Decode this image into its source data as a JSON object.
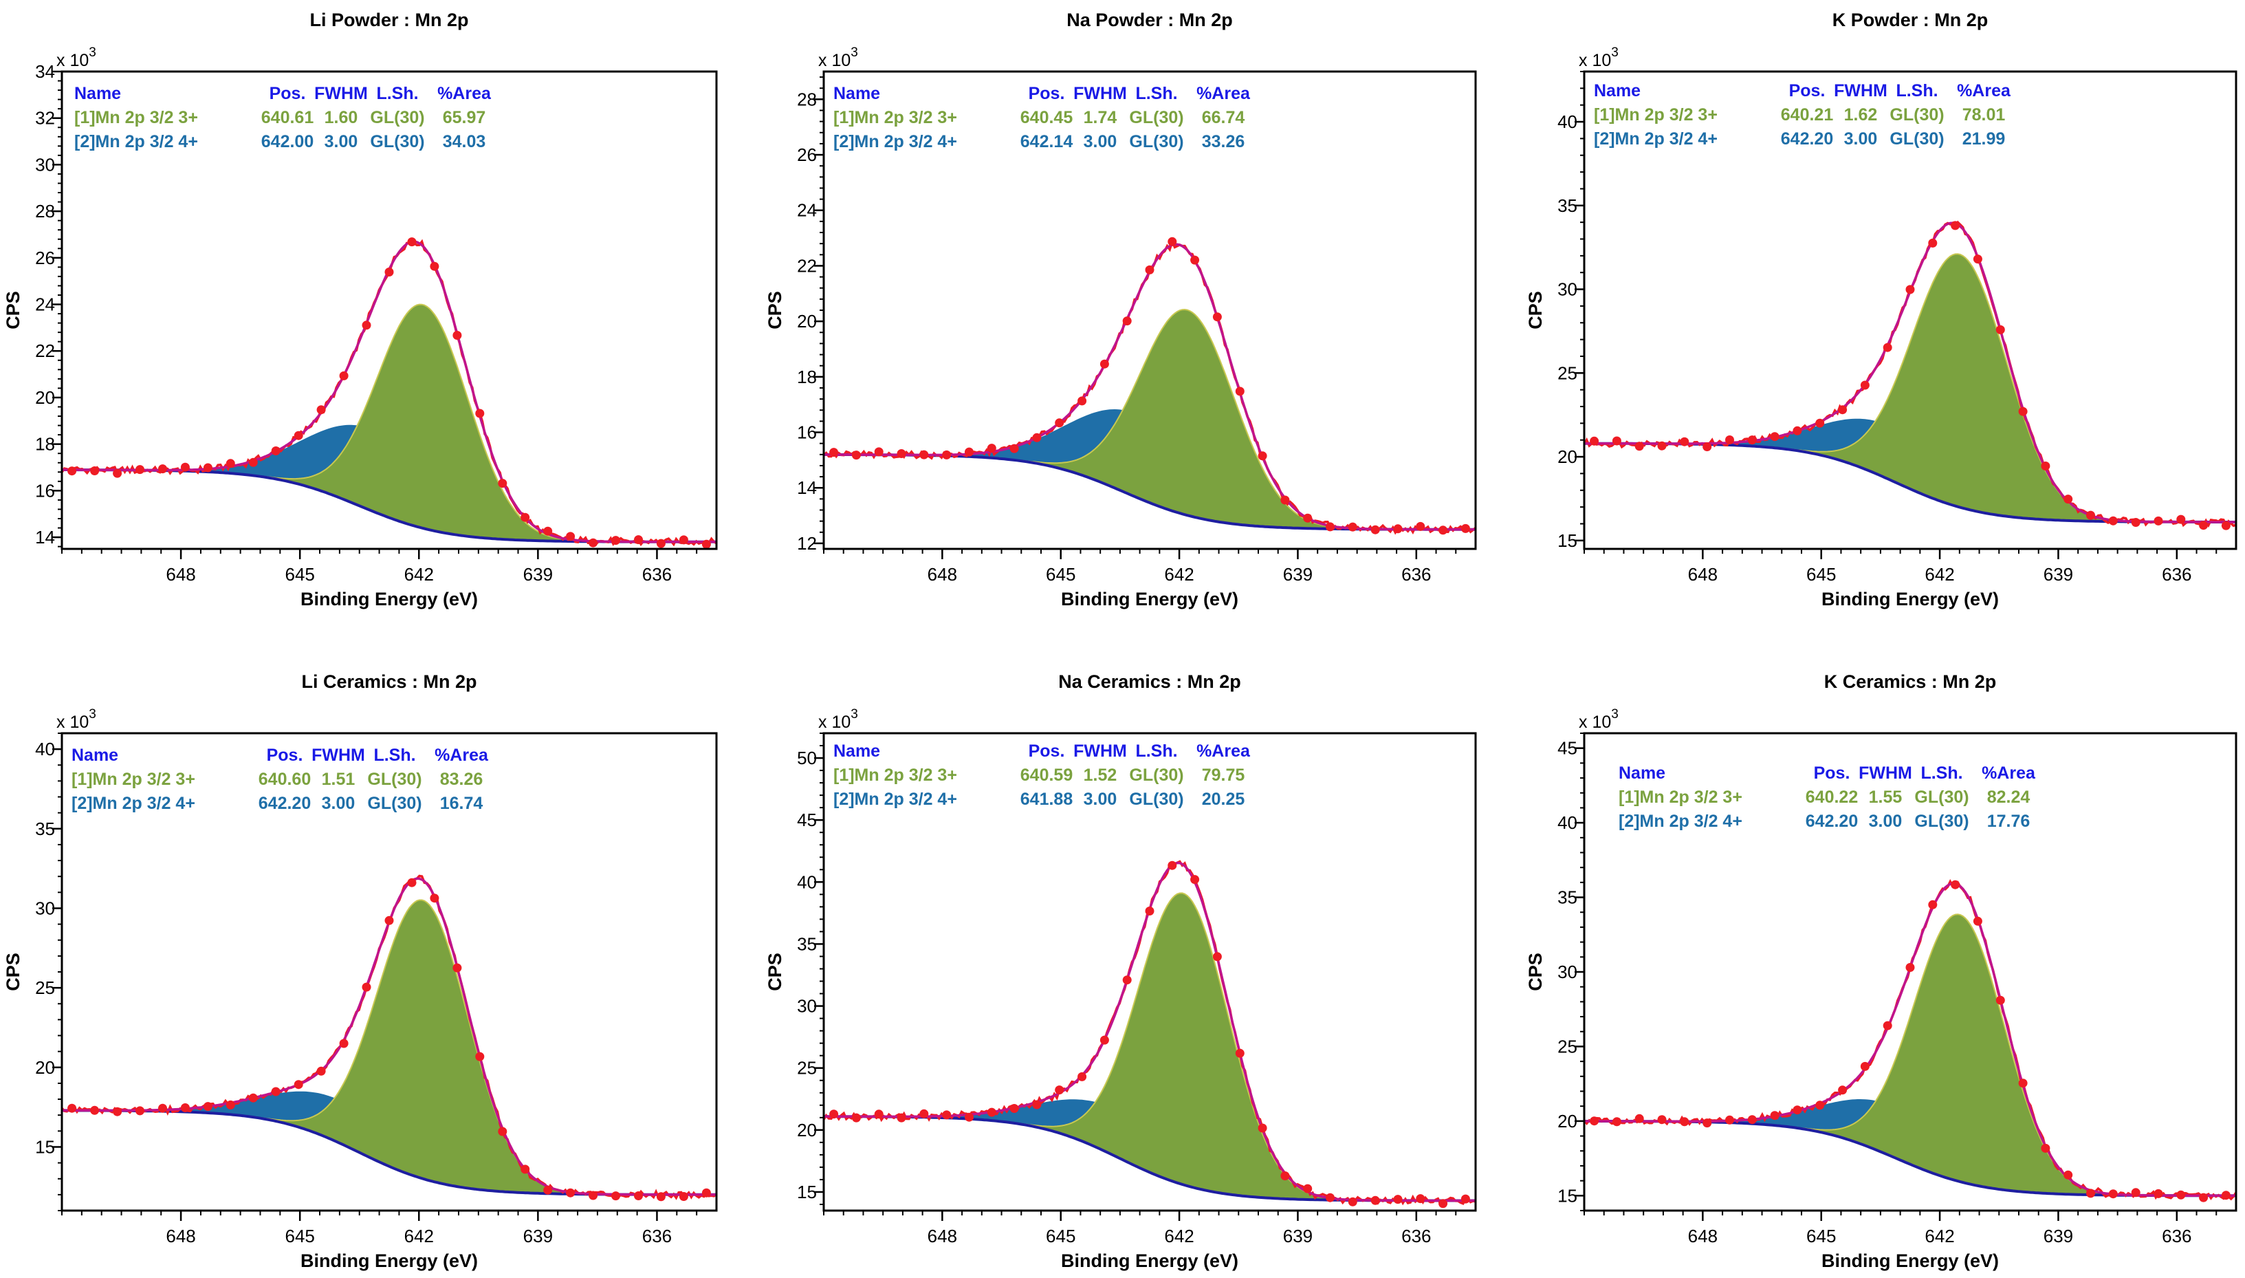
{
  "figure": {
    "xlabel": "Binding Energy (eV)",
    "ylabel": "CPS",
    "exp_prefix": "x 10",
    "exp_power": "3",
    "table_header": [
      "Name",
      "Pos.",
      "FWHM",
      "L.Sh.",
      "%Area"
    ]
  },
  "colors": {
    "mn3": "#7ba23f",
    "mn4": "#1f6fa8",
    "background": "#1e1ea0",
    "envelope": "#c0148c",
    "raw": "#ee1c24",
    "header": "#1a1ae6"
  },
  "chart_data": [
    {
      "type": "xps-fit",
      "title": "Li Powder : Mn 2p",
      "xlim": [
        651,
        634.5
      ],
      "xticks": [
        648,
        645,
        642,
        639,
        636
      ],
      "ylim": [
        13.5,
        34
      ],
      "yticks": [
        14,
        16,
        18,
        20,
        22,
        24,
        26,
        28,
        30,
        32,
        34
      ],
      "bg_high": 16.9,
      "bg_low": 13.8,
      "components": [
        {
          "name": "[1]Mn 2p 3/2 3+",
          "pos": "640.61",
          "fwhm": "1.60",
          "lsh": "GL(30)",
          "area": "65.97",
          "center": 641.9,
          "height": 9.6,
          "sigma": 1.15
        },
        {
          "name": "[2]Mn 2p 3/2 4+",
          "pos": "642.00",
          "fwhm": "3.00",
          "lsh": "GL(30)",
          "area": "34.03",
          "center": 643.2,
          "height": 3.5,
          "sigma": 1.6
        }
      ]
    },
    {
      "type": "xps-fit",
      "title": "Na Powder : Mn 2p",
      "xlim": [
        651,
        634.5
      ],
      "xticks": [
        648,
        645,
        642,
        639,
        636
      ],
      "ylim": [
        11.8,
        29
      ],
      "yticks": [
        12,
        14,
        16,
        18,
        20,
        22,
        24,
        26,
        28
      ],
      "bg_high": 15.2,
      "bg_low": 12.5,
      "components": [
        {
          "name": "[1]Mn 2p 3/2 3+",
          "pos": "640.45",
          "fwhm": "1.74",
          "lsh": "GL(30)",
          "area": "66.74",
          "center": 641.8,
          "height": 7.4,
          "sigma": 1.2
        },
        {
          "name": "[2]Mn 2p 3/2 4+",
          "pos": "642.14",
          "fwhm": "3.00",
          "lsh": "GL(30)",
          "area": "33.26",
          "center": 643.1,
          "height": 3.0,
          "sigma": 1.6
        }
      ]
    },
    {
      "type": "xps-fit",
      "title": "K Powder : Mn 2p",
      "xlim": [
        651,
        634.5
      ],
      "xticks": [
        648,
        645,
        642,
        639,
        636
      ],
      "ylim": [
        14.5,
        43
      ],
      "yticks": [
        15,
        20,
        25,
        30,
        35,
        40
      ],
      "bg_high": 20.8,
      "bg_low": 16.1,
      "components": [
        {
          "name": "[1]Mn 2p 3/2 3+",
          "pos": "640.21",
          "fwhm": "1.62",
          "lsh": "GL(30)",
          "area": "78.01",
          "center": 641.5,
          "height": 15.1,
          "sigma": 1.2
        },
        {
          "name": "[2]Mn 2p 3/2 4+",
          "pos": "642.20",
          "fwhm": "3.00",
          "lsh": "GL(30)",
          "area": "21.99",
          "center": 643.3,
          "height": 3.2,
          "sigma": 1.6
        }
      ]
    },
    {
      "type": "xps-fit",
      "title": "Li Ceramics : Mn 2p",
      "xlim": [
        651,
        634.5
      ],
      "xticks": [
        648,
        645,
        642,
        639,
        636
      ],
      "ylim": [
        11,
        41
      ],
      "yticks": [
        15,
        20,
        25,
        30,
        35,
        40
      ],
      "bg_high": 17.3,
      "bg_low": 12.0,
      "components": [
        {
          "name": "[1]Mn 2p 3/2 3+",
          "pos": "640.60",
          "fwhm": "1.51",
          "lsh": "GL(30)",
          "area": "83.26",
          "center": 641.9,
          "height": 17.5,
          "sigma": 1.15
        },
        {
          "name": "[2]Mn 2p 3/2 4+",
          "pos": "642.20",
          "fwhm": "3.00",
          "lsh": "GL(30)",
          "area": "16.74",
          "center": 644.0,
          "height": 2.7,
          "sigma": 1.7
        }
      ]
    },
    {
      "type": "xps-fit",
      "title": "Na Ceramics : Mn 2p",
      "xlim": [
        651,
        634.5
      ],
      "xticks": [
        648,
        645,
        642,
        639,
        636
      ],
      "ylim": [
        13.5,
        52
      ],
      "yticks": [
        15,
        20,
        25,
        30,
        35,
        40,
        45,
        50
      ],
      "bg_high": 21.1,
      "bg_low": 14.3,
      "components": [
        {
          "name": "[1]Mn 2p 3/2 3+",
          "pos": "640.59",
          "fwhm": "1.52",
          "lsh": "GL(30)",
          "area": "79.75",
          "center": 641.9,
          "height": 23.5,
          "sigma": 1.15
        },
        {
          "name": "[2]Mn 2p 3/2 4+",
          "pos": "641.88",
          "fwhm": "3.00",
          "lsh": "GL(30)",
          "area": "20.25",
          "center": 643.6,
          "height": 3.8,
          "sigma": 1.7
        }
      ]
    },
    {
      "type": "xps-fit",
      "title": "K Ceramics : Mn 2p",
      "xlim": [
        651,
        634.5
      ],
      "xticks": [
        648,
        645,
        642,
        639,
        636
      ],
      "ylim": [
        14,
        46
      ],
      "yticks": [
        15,
        20,
        25,
        30,
        35,
        40,
        45
      ],
      "bg_high": 20.0,
      "bg_low": 15.0,
      "components": [
        {
          "name": "[1]Mn 2p 3/2 3+",
          "pos": "640.22",
          "fwhm": "1.55",
          "lsh": "GL(30)",
          "area": "82.24",
          "center": 641.5,
          "height": 17.9,
          "sigma": 1.15
        },
        {
          "name": "[2]Mn 2p 3/2 4+",
          "pos": "642.20",
          "fwhm": "3.00",
          "lsh": "GL(30)",
          "area": "17.76",
          "center": 643.2,
          "height": 3.4,
          "sigma": 1.6
        }
      ]
    }
  ]
}
